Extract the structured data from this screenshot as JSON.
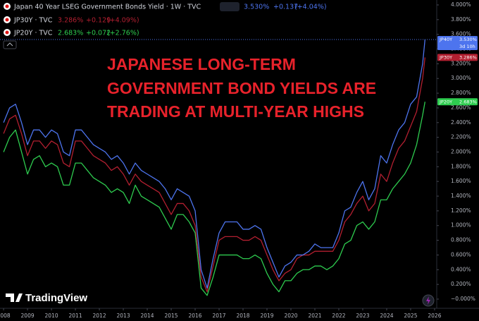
{
  "chart_data": {
    "type": "line",
    "annotation": [
      "JAPANESE LONG-TERM",
      "GOVERNMENT BOND YIELDS ARE",
      "TRADING AT MULTI-YEAR HIGHS"
    ],
    "watermark": "TradingView",
    "countdown": "3d 10h",
    "x": [
      2008,
      2008.25,
      2008.5,
      2008.75,
      2009,
      2009.25,
      2009.5,
      2009.75,
      2010,
      2010.25,
      2010.5,
      2010.75,
      2011,
      2011.25,
      2011.5,
      2011.75,
      2012,
      2012.25,
      2012.5,
      2012.75,
      2013,
      2013.25,
      2013.5,
      2013.75,
      2014,
      2014.25,
      2014.5,
      2014.75,
      2015,
      2015.25,
      2015.5,
      2015.75,
      2016,
      2016.25,
      2016.5,
      2016.75,
      2017,
      2017.25,
      2017.5,
      2017.75,
      2018,
      2018.25,
      2018.5,
      2018.75,
      2019,
      2019.25,
      2019.5,
      2019.75,
      2020,
      2020.25,
      2020.5,
      2020.75,
      2021,
      2021.25,
      2021.5,
      2021.75,
      2022,
      2022.25,
      2022.5,
      2022.75,
      2023,
      2023.25,
      2023.5,
      2023.75,
      2024,
      2024.25,
      2024.5,
      2024.75,
      2025,
      2025.25,
      2025.5,
      2025.6
    ],
    "xlim": [
      2007.85,
      2026.09
    ],
    "xticks": [
      2008,
      2009,
      2010,
      2011,
      2012,
      2013,
      2014,
      2015,
      2016,
      2017,
      2018,
      2019,
      2020,
      2021,
      2022,
      2023,
      2024,
      2025,
      2026
    ],
    "ylim": [
      -0.125,
      4.067
    ],
    "yticks": [
      {
        "value": 0,
        "label": "−0.000%"
      },
      {
        "value": 0.2,
        "label": "0.200%"
      },
      {
        "value": 0.4,
        "label": "0.400%"
      },
      {
        "value": 0.6,
        "label": "0.600%"
      },
      {
        "value": 0.8,
        "label": "0.800%"
      },
      {
        "value": 1,
        "label": "1.000%"
      },
      {
        "value": 1.2,
        "label": "1.200%"
      },
      {
        "value": 1.4,
        "label": "1.400%"
      },
      {
        "value": 1.6,
        "label": "1.600%"
      },
      {
        "value": 1.8,
        "label": "1.800%"
      },
      {
        "value": 2,
        "label": "2.000%"
      },
      {
        "value": 2.2,
        "label": "2.200%"
      },
      {
        "value": 2.4,
        "label": "2.400%"
      },
      {
        "value": 2.6,
        "label": "2.600%"
      },
      {
        "value": 2.8,
        "label": "2.800%"
      },
      {
        "value": 3,
        "label": "3.000%"
      },
      {
        "value": 3.2,
        "label": "3.200%"
      },
      {
        "value": 3.4,
        "label": "3.400%"
      },
      {
        "value": 3.6,
        "label": "3.600%"
      },
      {
        "value": 3.8,
        "label": "3.800%"
      },
      {
        "value": 4,
        "label": "4.000%"
      }
    ],
    "grid": false,
    "series": [
      {
        "name": "Japan 40 Year LSEG Government Bonds Yield · 1W · TVC",
        "tag": "JP40Y",
        "color": "#4d74ee",
        "last_label": "3.530%",
        "change": "+0.137",
        "change_pct": "(+4.04%)",
        "values": [
          2.4,
          2.6,
          2.65,
          2.4,
          2.1,
          2.3,
          2.3,
          2.2,
          2.3,
          2.25,
          2.0,
          1.95,
          2.3,
          2.3,
          2.2,
          2.1,
          2.05,
          2.0,
          1.9,
          1.95,
          1.85,
          1.7,
          1.85,
          1.75,
          1.7,
          1.65,
          1.6,
          1.5,
          1.35,
          1.5,
          1.45,
          1.4,
          1.2,
          0.4,
          0.15,
          0.55,
          0.9,
          1.05,
          1.05,
          1.05,
          0.95,
          0.95,
          1.0,
          0.95,
          0.7,
          0.5,
          0.3,
          0.45,
          0.5,
          0.6,
          0.6,
          0.65,
          0.75,
          0.7,
          0.7,
          0.7,
          0.9,
          1.2,
          1.25,
          1.45,
          1.6,
          1.35,
          1.5,
          1.95,
          1.85,
          2.1,
          2.3,
          2.4,
          2.65,
          2.75,
          3.2,
          3.53
        ]
      },
      {
        "name": "JP30Y · TVC",
        "tag": "JP30Y",
        "color": "#b21f30",
        "last_label": "3.286%",
        "change": "+0.129",
        "change_pct": "(+4.09%)",
        "values": [
          2.25,
          2.45,
          2.5,
          2.25,
          1.95,
          2.15,
          2.15,
          2.05,
          2.15,
          2.1,
          1.85,
          1.8,
          2.15,
          2.15,
          2.05,
          1.95,
          1.9,
          1.85,
          1.75,
          1.8,
          1.7,
          1.55,
          1.7,
          1.6,
          1.55,
          1.5,
          1.45,
          1.3,
          1.15,
          1.3,
          1.3,
          1.2,
          1.0,
          0.3,
          0.1,
          0.45,
          0.8,
          0.85,
          0.85,
          0.85,
          0.8,
          0.8,
          0.85,
          0.8,
          0.6,
          0.4,
          0.25,
          0.35,
          0.4,
          0.55,
          0.6,
          0.6,
          0.65,
          0.65,
          0.65,
          0.65,
          0.8,
          1.05,
          1.15,
          1.3,
          1.4,
          1.2,
          1.3,
          1.7,
          1.6,
          1.85,
          2.05,
          2.15,
          2.35,
          2.55,
          3.0,
          3.286
        ]
      },
      {
        "name": "JP20Y · TVC",
        "tag": "JP20Y",
        "color": "#2ecc4f",
        "last_label": "2.683%",
        "change": "+0.072",
        "change_pct": "(+2.76%)",
        "values": [
          2.0,
          2.2,
          2.3,
          2.0,
          1.7,
          1.9,
          1.95,
          1.8,
          1.85,
          1.8,
          1.55,
          1.55,
          1.85,
          1.85,
          1.75,
          1.65,
          1.6,
          1.55,
          1.45,
          1.5,
          1.45,
          1.3,
          1.55,
          1.4,
          1.35,
          1.3,
          1.25,
          1.1,
          0.95,
          1.15,
          1.15,
          1.05,
          0.9,
          0.15,
          0.05,
          0.3,
          0.6,
          0.6,
          0.6,
          0.6,
          0.55,
          0.55,
          0.6,
          0.55,
          0.35,
          0.2,
          0.1,
          0.25,
          0.25,
          0.35,
          0.4,
          0.4,
          0.45,
          0.45,
          0.4,
          0.45,
          0.55,
          0.75,
          0.8,
          1.0,
          1.05,
          0.95,
          1.05,
          1.35,
          1.35,
          1.5,
          1.6,
          1.7,
          1.85,
          2.1,
          2.5,
          2.683
        ]
      }
    ]
  }
}
